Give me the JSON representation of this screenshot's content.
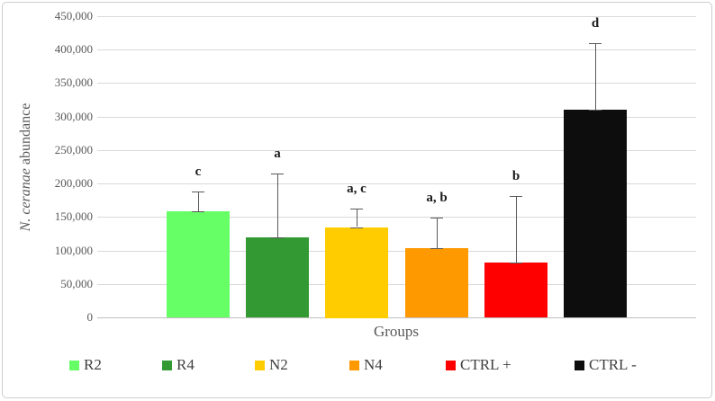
{
  "figure": {
    "y_axis_title_italic": "N. ceranae",
    "y_axis_title_rest": " abundance"
  },
  "chart_data": {
    "type": "bar",
    "title": "",
    "xlabel": "Groups",
    "ylabel": "N. ceranae abundance",
    "categories": [
      "R2",
      "R4",
      "N2",
      "N4",
      "CTRL +",
      "CTRL -"
    ],
    "values": [
      159000,
      120000,
      135000,
      104000,
      82000,
      310000
    ],
    "errors_plus": [
      29000,
      95000,
      27000,
      45000,
      99000,
      100000
    ],
    "significance_letters": [
      "c",
      "a",
      "a, c",
      "a, b",
      "b",
      "d"
    ],
    "bar_colors": [
      "#66FF66",
      "#339933",
      "#FFCC00",
      "#FF9900",
      "#FF0000",
      "#0D0D0D"
    ],
    "ylim": [
      0,
      450000
    ],
    "y_tick_step": 50000,
    "y_tick_labels": [
      "0",
      "50,000",
      "100,000",
      "150,000",
      "200,000",
      "250,000",
      "300,000",
      "350,000",
      "400,000",
      "450,000"
    ],
    "grid": true,
    "legend_position": "bottom"
  },
  "legend": {
    "items": [
      {
        "label": "R2",
        "color": "#66FF66"
      },
      {
        "label": "R4",
        "color": "#339933"
      },
      {
        "label": "N2",
        "color": "#FFCC00"
      },
      {
        "label": "N4",
        "color": "#FF9900"
      },
      {
        "label": "CTRL +",
        "color": "#FF0000"
      },
      {
        "label": "CTRL -",
        "color": "#0D0D0D"
      }
    ]
  },
  "colors": {
    "gridline": "#d9d9d9",
    "zero_line": "#bfbfbf",
    "tick_text": "#595959",
    "axis_title_text": "#595959",
    "error_bar": "#595959",
    "sig_letter": "#1a1a1a",
    "frame_border": "#cdcdcd",
    "background": "#ffffff"
  }
}
